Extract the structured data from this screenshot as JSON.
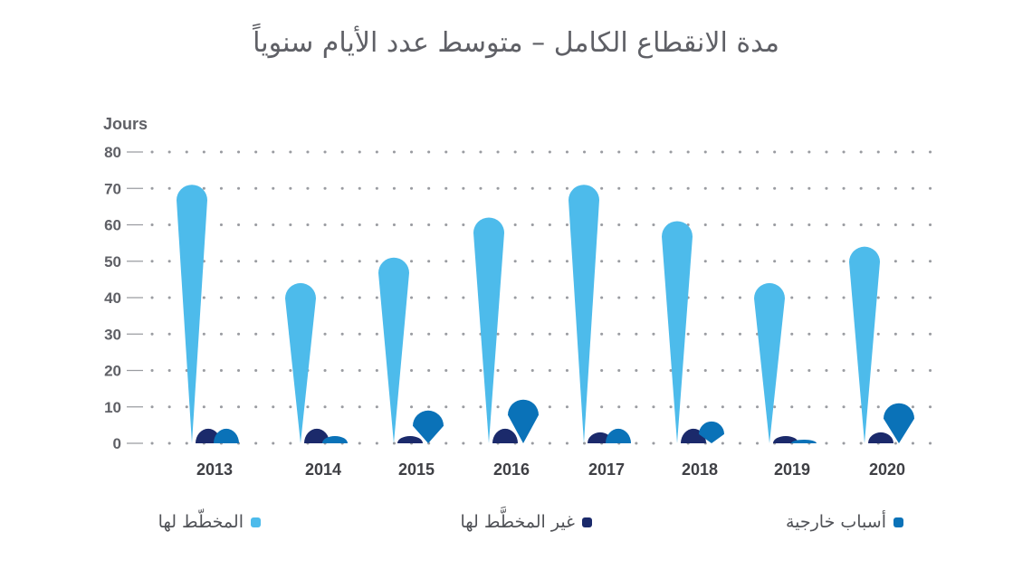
{
  "title": "مدة الانقطاع الكامل – متوسط عدد الأيام سنوياً",
  "chart_data": {
    "type": "bar",
    "title": "مدة الانقطاع الكامل – متوسط عدد الأيام سنوياً",
    "ylabel": "Jours",
    "xlabel": "",
    "ylim": [
      0,
      80
    ],
    "yticks": [
      0,
      10,
      20,
      30,
      40,
      50,
      60,
      70,
      80
    ],
    "grid": true,
    "legend_position": "bottom",
    "categories": [
      "2013",
      "2014",
      "2015",
      "2016",
      "2017",
      "2018",
      "2019",
      "2020"
    ],
    "series": [
      {
        "name": "المخطّط لها",
        "color": "#4dbbeb",
        "values": [
          71,
          44,
          51,
          62,
          71,
          61,
          44,
          54
        ]
      },
      {
        "name": "غير المخطَّط لها",
        "color": "#1b2a6b",
        "values": [
          4,
          4,
          2,
          4,
          3,
          4,
          2,
          3
        ]
      },
      {
        "name": "أسباب خارجية",
        "color": "#0a72b8",
        "values": [
          4,
          2,
          9,
          12,
          4,
          6,
          1,
          11
        ]
      }
    ]
  }
}
